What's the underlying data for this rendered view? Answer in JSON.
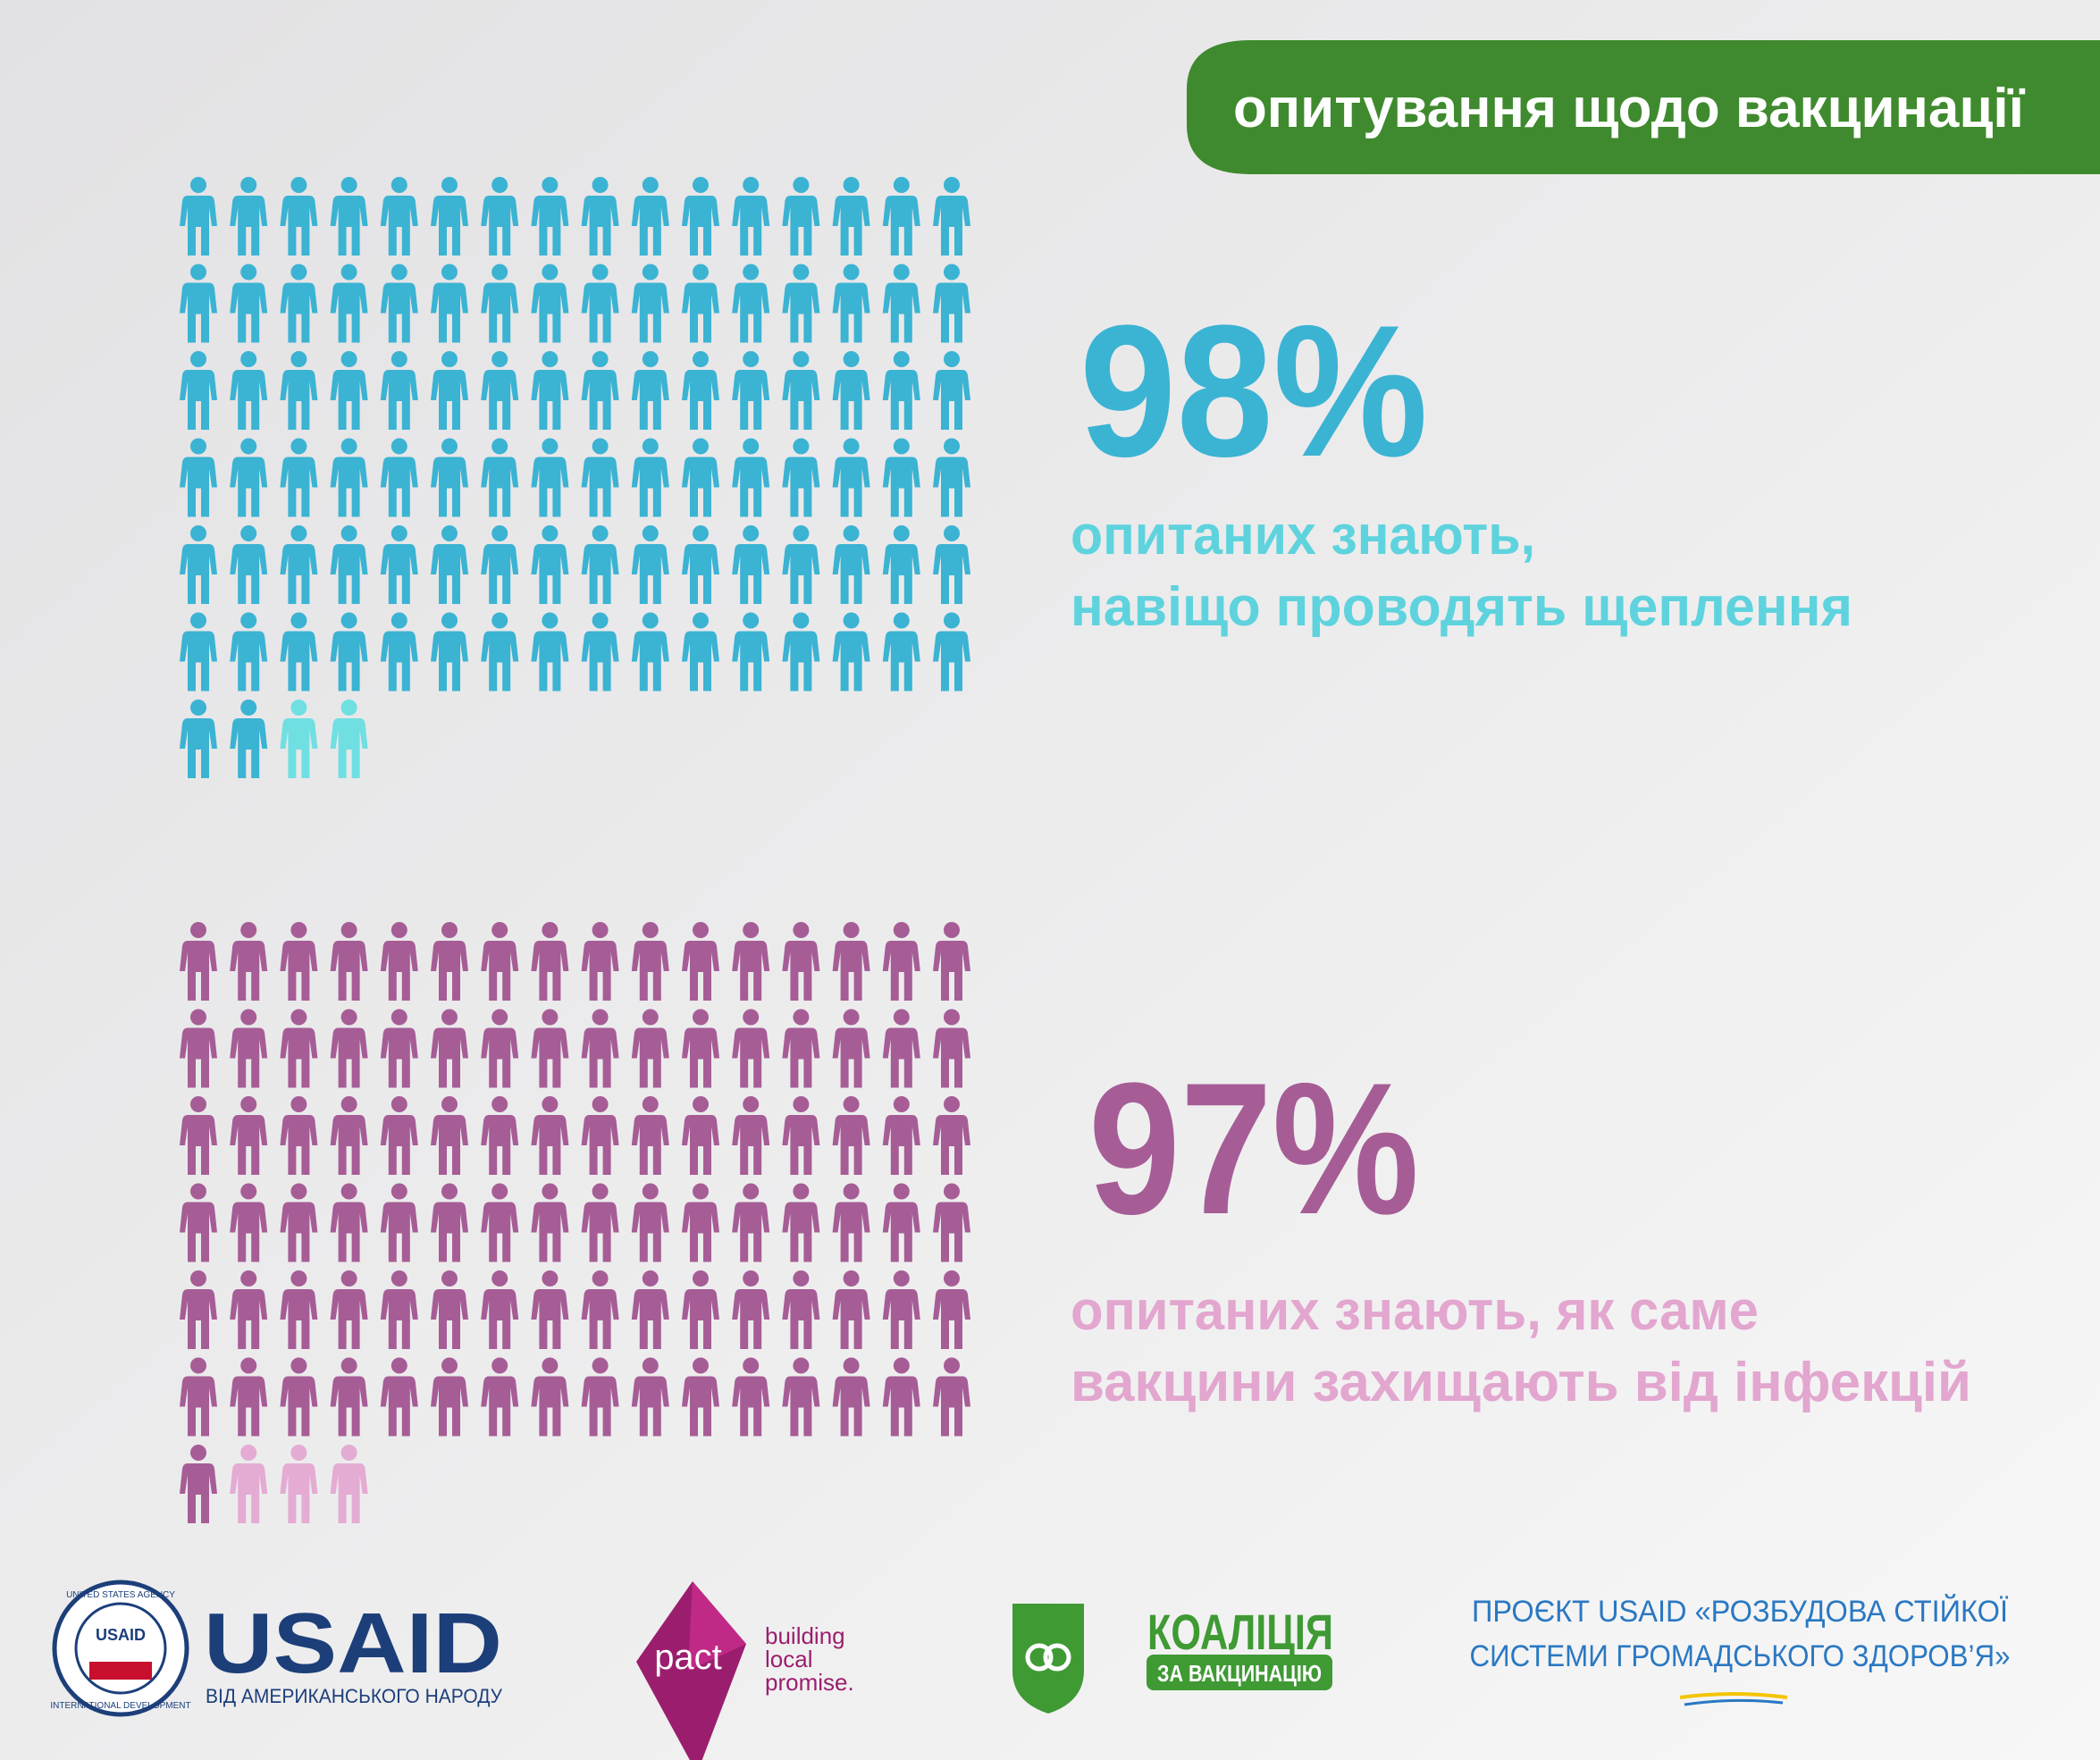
{
  "header": {
    "title": "опитування щодо вакцинації"
  },
  "panels": [
    {
      "value": 98,
      "value_label": "98%",
      "color": "#3bb3d3",
      "rest_color": "#6fdfe2",
      "text_color": "#5ed3dd",
      "lines": [
        "опитаних знають,",
        "навіщо проводять щеплення"
      ]
    },
    {
      "value": 97,
      "value_label": "97%",
      "color": "#a65d96",
      "rest_color": "#e4abd3",
      "text_color": "#e2a6cf",
      "lines": [
        "опитаних знають, як саме",
        "вакцини захищають від інфекцій"
      ]
    }
  ],
  "footer": {
    "usaid": {
      "seal_top": "UNITED STATES AGENCY",
      "seal_bottom": "INTERNATIONAL DEVELOPMENT",
      "seal_center": "USAID",
      "name": "USAID",
      "tagline": "ВІД АМЕРИКАНСЬКОГО НАРОДУ"
    },
    "pact": {
      "name": "pact",
      "tagline": [
        "building",
        "local",
        "promise."
      ]
    },
    "coalition": {
      "name": "КОАЛІЦІЯ",
      "tagline": "ЗА ВАКЦИНАЦІЮ"
    },
    "project": [
      "ПРОЄКТ USAID «РОЗБУДОВА СТІЙКОЇ",
      "СИСТЕМИ ГРОМАДСЬКОГО ЗДОРОВ’Я»"
    ]
  }
}
